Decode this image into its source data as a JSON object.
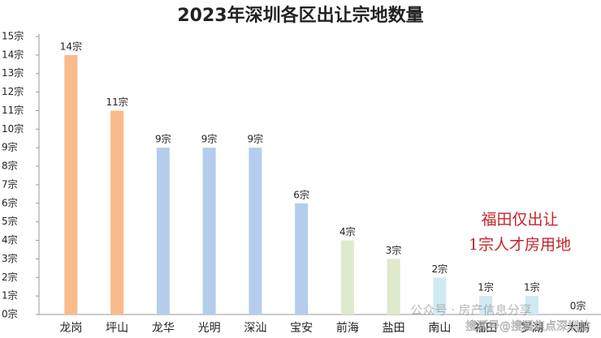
{
  "chart_data": {
    "type": "bar",
    "title": "2023年深圳各区出让宗地数量",
    "categories": [
      "龙岗",
      "坪山",
      "龙华",
      "光明",
      "深汕",
      "宝安",
      "前海",
      "盐田",
      "南山",
      "福田",
      "罗湖",
      "大鹏"
    ],
    "values": [
      14,
      11,
      9,
      9,
      9,
      6,
      4,
      3,
      2,
      1,
      1,
      0
    ],
    "value_labels": [
      "14宗",
      "11宗",
      "9宗",
      "9宗",
      "9宗",
      "6宗",
      "4宗",
      "3宗",
      "2宗",
      "1宗",
      "1宗",
      "0宗"
    ],
    "colors": [
      "#f8bb8c",
      "#f8bb8c",
      "#b5cdec",
      "#b5cdec",
      "#b5cdec",
      "#b5cdec",
      "#dfe9cb",
      "#dfe9cb",
      "#cfeaf1",
      "#cfeaf1",
      "#cfeaf1",
      "#cfeaf1"
    ],
    "ylim": [
      0,
      15
    ],
    "yticks": [
      {
        "value": 0,
        "label": "0宗"
      },
      {
        "value": 1,
        "label": "1宗"
      },
      {
        "value": 2,
        "label": "2宗"
      },
      {
        "value": 3,
        "label": "3宗"
      },
      {
        "value": 4,
        "label": "4宗"
      },
      {
        "value": 5,
        "label": "5宗"
      },
      {
        "value": 6,
        "label": "6宗"
      },
      {
        "value": 7,
        "label": "7宗"
      },
      {
        "value": 8,
        "label": "8宗"
      },
      {
        "value": 9,
        "label": "9宗"
      },
      {
        "value": 10,
        "label": "10宗"
      },
      {
        "value": 11,
        "label": "11宗"
      },
      {
        "value": 12,
        "label": "12宗"
      },
      {
        "value": 13,
        "label": "13宗"
      },
      {
        "value": 14,
        "label": "14宗"
      },
      {
        "value": 15,
        "label": "15宗"
      }
    ],
    "grid": false,
    "annotations": [
      "福田仅出让",
      "1宗人才房用地"
    ],
    "watermarks": [
      "公众号 · 房产信息分享",
      "搜狐号@搜狐焦点深圳站"
    ]
  }
}
